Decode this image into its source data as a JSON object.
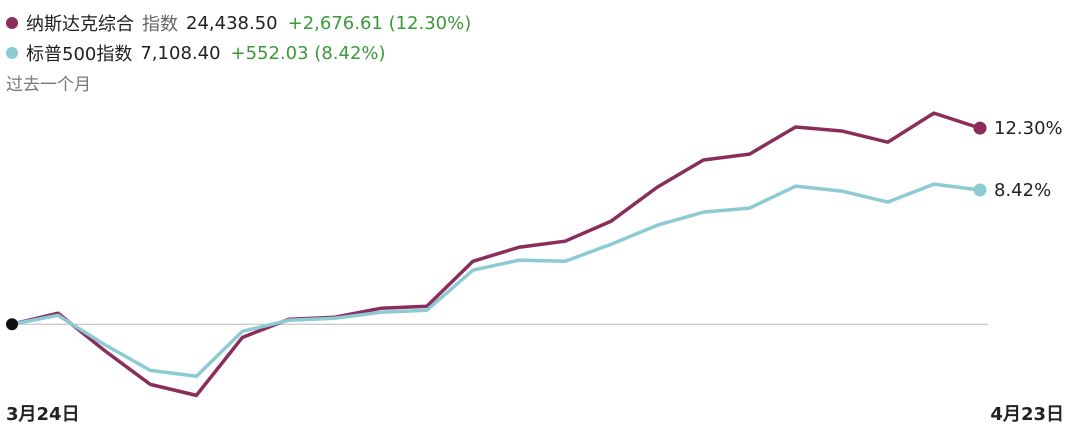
{
  "chart_data": {
    "type": "line",
    "subtitle": "过去一个月",
    "categories": [
      "3月24日",
      null,
      null,
      null,
      null,
      null,
      null,
      null,
      null,
      null,
      null,
      null,
      null,
      null,
      null,
      null,
      null,
      null,
      null,
      null,
      null,
      "4月23日"
    ],
    "series": [
      {
        "name": "纳斯达克综合",
        "kind": "指数",
        "level": "24,438.50",
        "change": "+2,676.61 (12.30%)",
        "color": "#8a2d5b",
        "values": [
          0,
          0.69,
          -1.63,
          -3.77,
          -4.46,
          -0.82,
          0.31,
          0.44,
          1.0,
          1.13,
          3.95,
          4.83,
          5.21,
          6.47,
          8.6,
          10.3,
          10.67,
          12.37,
          12.12,
          11.42,
          13.24,
          12.3
        ],
        "end_label": "12.30%"
      },
      {
        "name": "标普500指数",
        "level": "7,108.40",
        "change": "+552.03 (8.42%)",
        "color": "#8ccbd3",
        "values": [
          0,
          0.56,
          -1.26,
          -2.89,
          -3.26,
          -0.44,
          0.25,
          0.38,
          0.75,
          0.88,
          3.39,
          4.02,
          3.95,
          5.02,
          6.21,
          7.03,
          7.28,
          8.66,
          8.35,
          7.66,
          8.79,
          8.42
        ],
        "end_label": "8.42%"
      }
    ],
    "ylim": [
      -5,
      14
    ],
    "change_color": "#3a9a3a"
  }
}
